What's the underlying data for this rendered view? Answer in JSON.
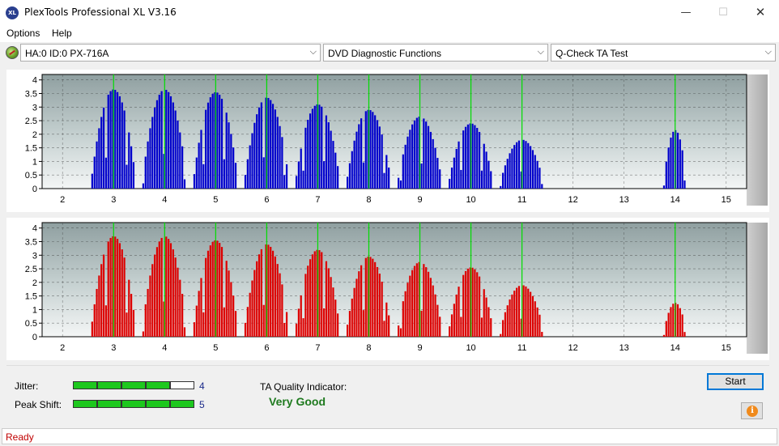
{
  "window": {
    "title": "PlexTools Professional XL V3.16",
    "app_icon_text": "XL",
    "minimize_glyph": "—",
    "maximize_glyph": "☐",
    "close_glyph": "✕"
  },
  "menu": {
    "items": [
      "Options",
      "Help"
    ]
  },
  "toolbar": {
    "drive": "HA:0 ID:0  PX-716A",
    "function": "DVD Diagnostic Functions",
    "test": "Q-Check TA Test",
    "arrow_glyph": "⌵"
  },
  "charts": {
    "y_ticks": [
      "4",
      "3.5",
      "3",
      "2.5",
      "2",
      "1.5",
      "1",
      "0.5",
      "0"
    ],
    "x_ticks": [
      "2",
      "3",
      "4",
      "5",
      "6",
      "7",
      "8",
      "9",
      "10",
      "11",
      "12",
      "13",
      "14",
      "15"
    ]
  },
  "chart_data": [
    {
      "type": "bar",
      "series": [
        {
          "color": "#0000cc"
        }
      ],
      "xlim": [
        1.6,
        15.4
      ],
      "ylim": [
        0,
        4.2
      ],
      "reference_lines": [
        3,
        4,
        5,
        6,
        7,
        8,
        9,
        10,
        11,
        14
      ],
      "reference_line_color": "#00dd00",
      "peaks": [
        {
          "x": 3,
          "height": 3.65
        },
        {
          "x": 4,
          "height": 3.65
        },
        {
          "x": 5,
          "height": 3.55
        },
        {
          "x": 6,
          "height": 3.35
        },
        {
          "x": 7,
          "height": 3.1
        },
        {
          "x": 8,
          "height": 2.9
        },
        {
          "x": 9,
          "height": 2.65
        },
        {
          "x": 10,
          "height": 2.4
        },
        {
          "x": 11,
          "height": 1.8
        },
        {
          "x": 14,
          "height": 2.15
        }
      ]
    },
    {
      "type": "bar",
      "series": [
        {
          "color": "#dd0000"
        }
      ],
      "xlim": [
        1.6,
        15.4
      ],
      "ylim": [
        0,
        4.2
      ],
      "reference_lines": [
        3,
        4,
        5,
        6,
        7,
        8,
        9,
        10,
        11,
        14
      ],
      "reference_line_color": "#00dd00",
      "peaks": [
        {
          "x": 3,
          "height": 3.7
        },
        {
          "x": 4,
          "height": 3.7
        },
        {
          "x": 5,
          "height": 3.55
        },
        {
          "x": 6,
          "height": 3.4
        },
        {
          "x": 7,
          "height": 3.2
        },
        {
          "x": 8,
          "height": 2.95
        },
        {
          "x": 9,
          "height": 2.75
        },
        {
          "x": 10,
          "height": 2.55
        },
        {
          "x": 11,
          "height": 1.9
        },
        {
          "x": 14,
          "height": 1.25
        }
      ]
    }
  ],
  "metrics": {
    "jitter_label": "Jitter:",
    "jitter_value": "4",
    "jitter_level": 4,
    "peak_shift_label": "Peak Shift:",
    "peak_shift_value": "5",
    "peak_shift_level": 5,
    "meter_segments": 5,
    "ta_label": "TA Quality Indicator:",
    "ta_value": "Very Good"
  },
  "buttons": {
    "start": "Start",
    "info_glyph": "i"
  },
  "status": {
    "text": "Ready"
  }
}
